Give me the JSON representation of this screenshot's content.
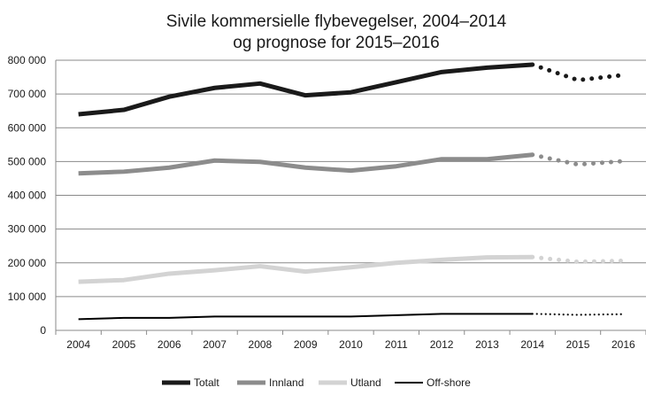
{
  "chart_data": {
    "type": "line",
    "title": [
      "Sivile kommersielle flybevegelser, 2004–2014",
      "og prognose for 2015–2016"
    ],
    "xlabel": "",
    "ylabel": "",
    "categories": [
      "2004",
      "2005",
      "2006",
      "2007",
      "2008",
      "2009",
      "2010",
      "2011",
      "2012",
      "2013",
      "2014",
      "2015",
      "2016"
    ],
    "forecast_from_index": 10,
    "ylim": [
      0,
      800000
    ],
    "yticks": [
      0,
      100000,
      200000,
      300000,
      400000,
      500000,
      600000,
      700000,
      800000
    ],
    "ytick_labels": [
      "0",
      "100 000",
      "200 000",
      "300 000",
      "400 000",
      "500 000",
      "600 000",
      "700 000",
      "800 000"
    ],
    "grid": true,
    "legend_position": "bottom",
    "series": [
      {
        "name": "Totalt",
        "color": "#1a1a1a",
        "width": "thick",
        "values": [
          640000,
          653000,
          692000,
          718000,
          731000,
          696000,
          705000,
          735000,
          765000,
          778000,
          787000,
          741000,
          756000
        ]
      },
      {
        "name": "Innland",
        "color": "#8c8c8c",
        "width": "thick",
        "values": [
          465000,
          470000,
          482000,
          503000,
          499000,
          482000,
          473000,
          486000,
          507000,
          507000,
          520000,
          491000,
          501000
        ]
      },
      {
        "name": "Utland",
        "color": "#d3d3d3",
        "width": "thick",
        "values": [
          144000,
          149000,
          168000,
          178000,
          190000,
          174000,
          187000,
          200000,
          209000,
          216000,
          217000,
          203000,
          206000
        ]
      },
      {
        "name": "Off-shore",
        "color": "#000000",
        "width": "thin",
        "values": [
          33000,
          37000,
          37000,
          41000,
          41000,
          41000,
          41000,
          45000,
          49000,
          49000,
          49000,
          46000,
          48000
        ]
      }
    ]
  }
}
